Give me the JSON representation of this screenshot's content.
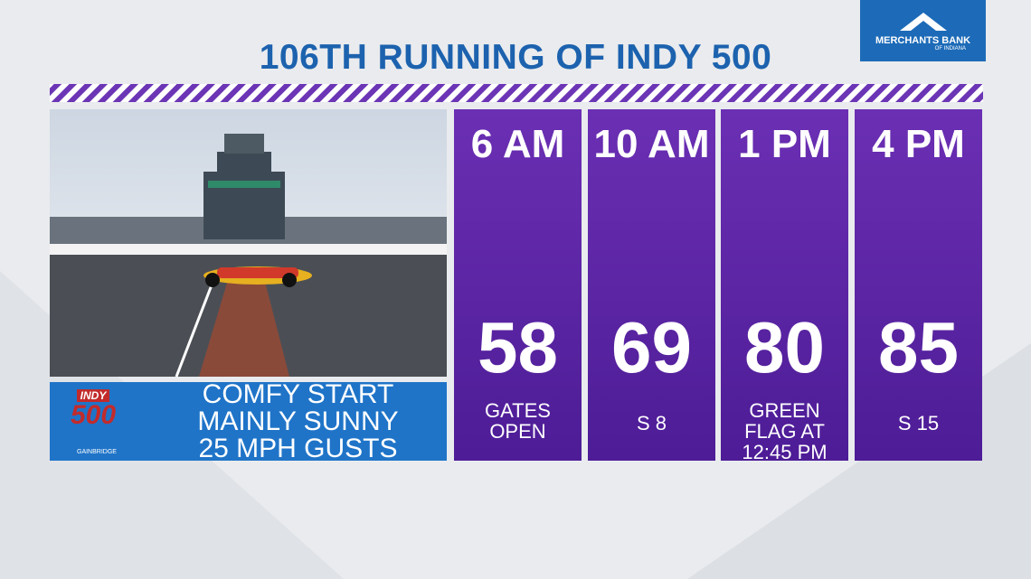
{
  "header": {
    "title": "106TH RUNNING OF INDY 500",
    "sponsor": {
      "name": "MERCHANTS BANK",
      "sub": "OF INDIANA"
    }
  },
  "logo": {
    "top": "INDY",
    "number": "500",
    "sponsor": "GAINBRIDGE"
  },
  "summary": [
    "COMFY START",
    "MAINLY SUNNY",
    "25 MPH GUSTS"
  ],
  "columns": [
    {
      "time": "6 AM",
      "temp": "58",
      "note": [
        "GATES",
        "OPEN"
      ]
    },
    {
      "time": "10 AM",
      "temp": "69",
      "note": [
        "S 8"
      ]
    },
    {
      "time": "1 PM",
      "temp": "80",
      "note": [
        "GREEN",
        "FLAG AT",
        "12:45 PM"
      ]
    },
    {
      "time": "4 PM",
      "temp": "85",
      "note": [
        "S 15"
      ]
    }
  ]
}
